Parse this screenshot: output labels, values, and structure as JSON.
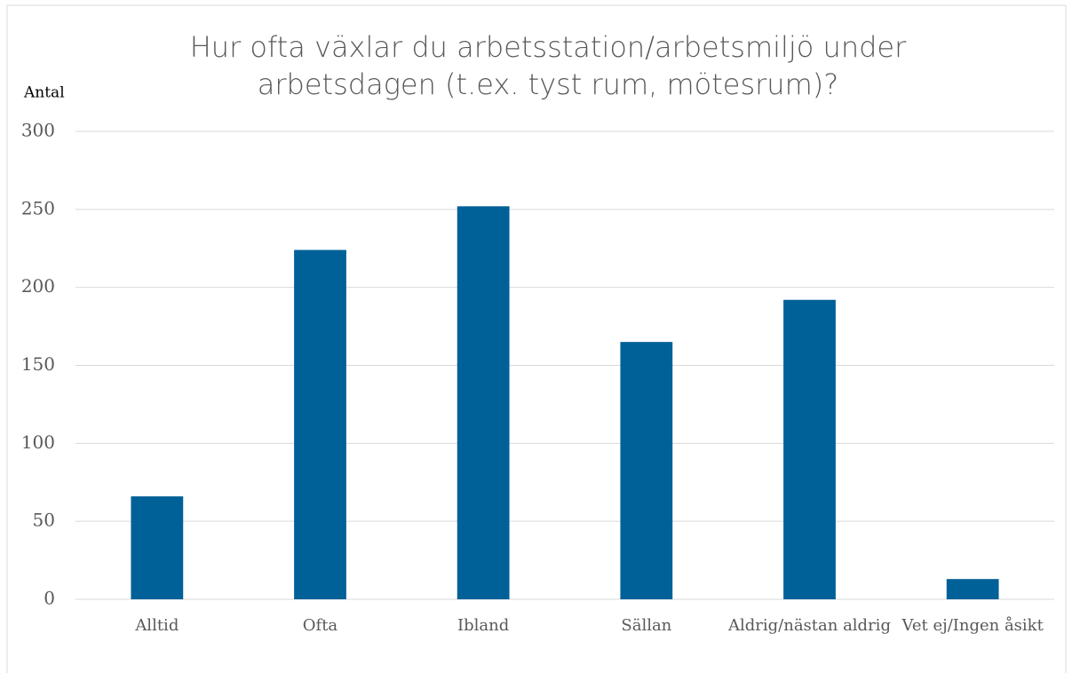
{
  "chart_data": {
    "type": "bar",
    "title": "Hur ofta växlar du arbetsstation/arbetsmiljö under arbetsdagen (t.ex. tyst rum, mötesrum)?",
    "y_label": "Antal",
    "categories": [
      "Alltid",
      "Ofta",
      "Ibland",
      "Sällan",
      "Aldrig/nästan aldrig",
      "Vet ej/Ingen åsikt"
    ],
    "values": [
      66,
      224,
      252,
      165,
      192,
      13
    ],
    "color": "#006098",
    "ylim": [
      0,
      300
    ],
    "yticks": [
      0,
      50,
      100,
      150,
      200,
      250,
      300
    ],
    "grid": true
  }
}
